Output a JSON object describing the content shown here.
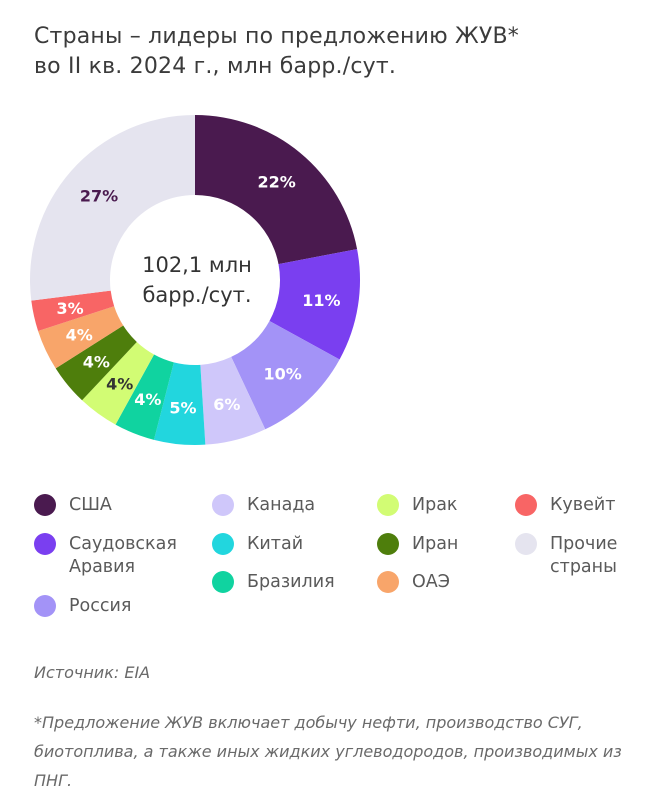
{
  "title_line1": "Страны – лидеры по предложению ЖУВ*",
  "title_line2": "во II кв. 2024 г., млн барр./сут.",
  "center_line1": "102,1 млн",
  "center_line2": "барр./сут.",
  "chart_data": {
    "type": "pie",
    "title": "Страны – лидеры по предложению ЖУВ* во II кв. 2024 г., млн барр./сут.",
    "total": "102,1 млн барр./сут.",
    "slices": [
      {
        "name": "США",
        "value": 22,
        "label": "22%",
        "color": "#4a1a4f",
        "label_color": "#ffffff"
      },
      {
        "name": "Саудовская Аравия",
        "value": 11,
        "label": "11%",
        "color": "#7a3ff0",
        "label_color": "#ffffff"
      },
      {
        "name": "Россия",
        "value": 10,
        "label": "10%",
        "color": "#a393f7",
        "label_color": "#ffffff"
      },
      {
        "name": "Канада",
        "value": 6,
        "label": "6%",
        "color": "#cfc7fa",
        "label_color": "#ffffff"
      },
      {
        "name": "Китай",
        "value": 5,
        "label": "5%",
        "color": "#22d6de",
        "label_color": "#ffffff"
      },
      {
        "name": "Бразилия",
        "value": 4,
        "label": "4%",
        "color": "#10d3a0",
        "label_color": "#ffffff"
      },
      {
        "name": "Ирак",
        "value": 4,
        "label": "4%",
        "color": "#d2fc74",
        "label_color": "#333333"
      },
      {
        "name": "Иран",
        "value": 4,
        "label": "4%",
        "color": "#4e7e0c",
        "label_color": "#ffffff"
      },
      {
        "name": "ОАЭ",
        "value": 4,
        "label": "4%",
        "color": "#f8a56a",
        "label_color": "#ffffff"
      },
      {
        "name": "Кувейт",
        "value": 3,
        "label": "3%",
        "color": "#f86565",
        "label_color": "#ffffff"
      },
      {
        "name": "Прочие страны",
        "value": 27,
        "label": "27%",
        "color": "#e5e4ef",
        "label_color": "#4a1a4f"
      }
    ]
  },
  "legend": [
    {
      "label": "США",
      "color": "#4a1a4f"
    },
    {
      "label": "Саудовская\nАравия",
      "color": "#7a3ff0"
    },
    {
      "label": "Россия",
      "color": "#a393f7"
    },
    {
      "label": "Канада",
      "color": "#cfc7fa"
    },
    {
      "label": "Китай",
      "color": "#22d6de"
    },
    {
      "label": "Бразилия",
      "color": "#10d3a0"
    },
    {
      "label": "Ирак",
      "color": "#d2fc74"
    },
    {
      "label": "Иран",
      "color": "#4e7e0c"
    },
    {
      "label": "ОАЭ",
      "color": "#f8a56a"
    },
    {
      "label": "Кувейт",
      "color": "#f86565"
    },
    {
      "label": "Прочие\nстраны",
      "color": "#e5e4ef"
    }
  ],
  "source": "Источник: EIA",
  "note": "*Предложение ЖУВ включает добычу нефти, производство СУГ, биотоплива, а также иных жидких углеводородов, производимых из ПНГ."
}
